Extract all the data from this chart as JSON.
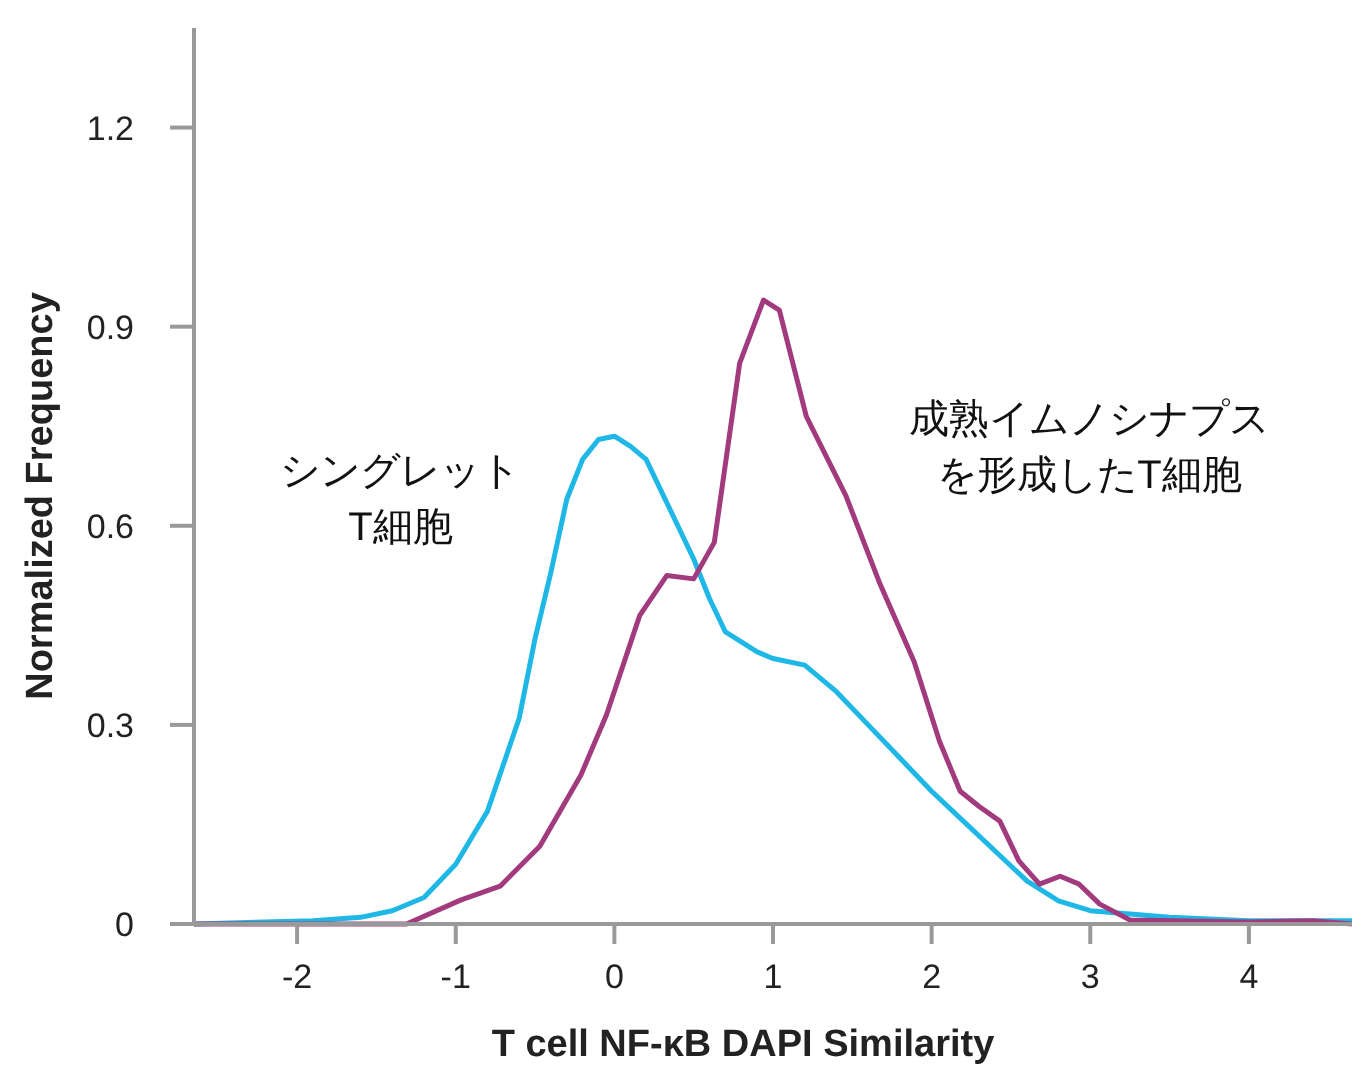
{
  "chart_data": {
    "type": "line",
    "xlabel": "T cell NF-κB DAPI Similarity",
    "ylabel": "Normalized Frequency",
    "xlim": [
      -2.65,
      4.65
    ],
    "xticks": [
      -2,
      -1,
      0,
      1,
      2,
      3,
      4
    ],
    "ylim": [
      0,
      1.35
    ],
    "yticks": [
      0,
      0.3,
      0.6,
      0.9,
      1.2
    ],
    "grid": false,
    "marker": "none",
    "line_style": "solid",
    "series": [
      {
        "name": "シングレットT細胞",
        "color": "#1fb8e6",
        "x": [
          -2.65,
          -1.9,
          -1.6,
          -1.4,
          -1.2,
          -1.0,
          -0.8,
          -0.6,
          -0.5,
          -0.4,
          -0.3,
          -0.2,
          -0.1,
          0,
          0.1,
          0.2,
          0.3,
          0.4,
          0.5,
          0.6,
          0.7,
          0.8,
          0.9,
          1.0,
          1.2,
          1.4,
          1.6,
          1.8,
          2.0,
          2.2,
          2.4,
          2.6,
          2.8,
          3.0,
          3.5,
          4.0,
          4.65
        ],
        "values": [
          0,
          0.005,
          0.01,
          0.02,
          0.04,
          0.09,
          0.17,
          0.31,
          0.43,
          0.53,
          0.64,
          0.7,
          0.73,
          0.735,
          0.72,
          0.7,
          0.65,
          0.6,
          0.55,
          0.49,
          0.44,
          0.425,
          0.41,
          0.4,
          0.39,
          0.35,
          0.3,
          0.25,
          0.2,
          0.155,
          0.11,
          0.065,
          0.035,
          0.02,
          0.01,
          0.005,
          0.005
        ]
      },
      {
        "name": "成熟イムノシナプスを形成したT細胞",
        "color": "#a23a7e",
        "x": [
          -2.65,
          -1.31,
          -0.97,
          -0.72,
          -0.47,
          -0.21,
          -0.05,
          0.16,
          0.33,
          0.5,
          0.63,
          0.79,
          0.94,
          1.04,
          1.21,
          1.46,
          1.67,
          1.89,
          2.05,
          2.18,
          2.3,
          2.43,
          2.55,
          2.68,
          2.81,
          2.93,
          3.06,
          3.25,
          4.0,
          4.4,
          4.65
        ],
        "values": [
          0,
          0,
          0.036,
          0.057,
          0.117,
          0.225,
          0.315,
          0.465,
          0.525,
          0.52,
          0.575,
          0.845,
          0.94,
          0.925,
          0.765,
          0.645,
          0.515,
          0.395,
          0.275,
          0.2,
          0.177,
          0.155,
          0.095,
          0.06,
          0.072,
          0.06,
          0.03,
          0.006,
          0.003,
          0.005,
          0
        ]
      }
    ]
  }
}
